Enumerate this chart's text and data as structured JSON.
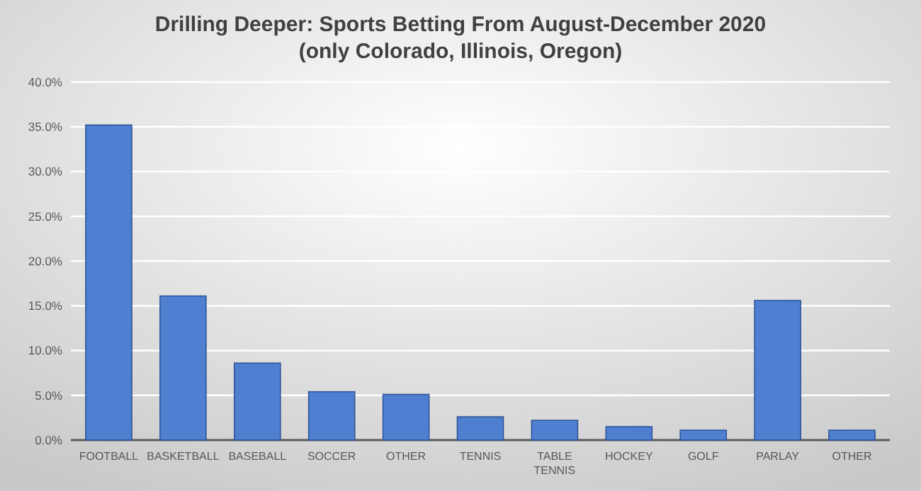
{
  "chart_data": {
    "type": "bar",
    "title": "Drilling Deeper: Sports Betting From August-December 2020",
    "subtitle": "(only Colorado, Illinois, Oregon)",
    "categories": [
      "FOOTBALL",
      "BASKETBALL",
      "BASEBALL",
      "SOCCER",
      "OTHER",
      "TENNIS",
      "TABLE TENNIS",
      "HOCKEY",
      "GOLF",
      "PARLAY",
      "OTHER"
    ],
    "values": [
      35.2,
      16.1,
      8.6,
      5.4,
      5.1,
      2.6,
      2.2,
      1.5,
      1.1,
      15.6,
      1.1
    ],
    "color": "#4f7fd0",
    "ylim": [
      0,
      40
    ],
    "yticks": [
      {
        "value": 0,
        "label": "0.0%"
      },
      {
        "value": 5,
        "label": "5.0%"
      },
      {
        "value": 10,
        "label": "10.0%"
      },
      {
        "value": 15,
        "label": "15.0%"
      },
      {
        "value": 20,
        "label": "20.0%"
      },
      {
        "value": 25,
        "label": "25.0%"
      },
      {
        "value": 30,
        "label": "30.0%"
      },
      {
        "value": 35,
        "label": "35.0%"
      },
      {
        "value": 40,
        "label": "40.0%"
      }
    ],
    "grid": "y"
  }
}
